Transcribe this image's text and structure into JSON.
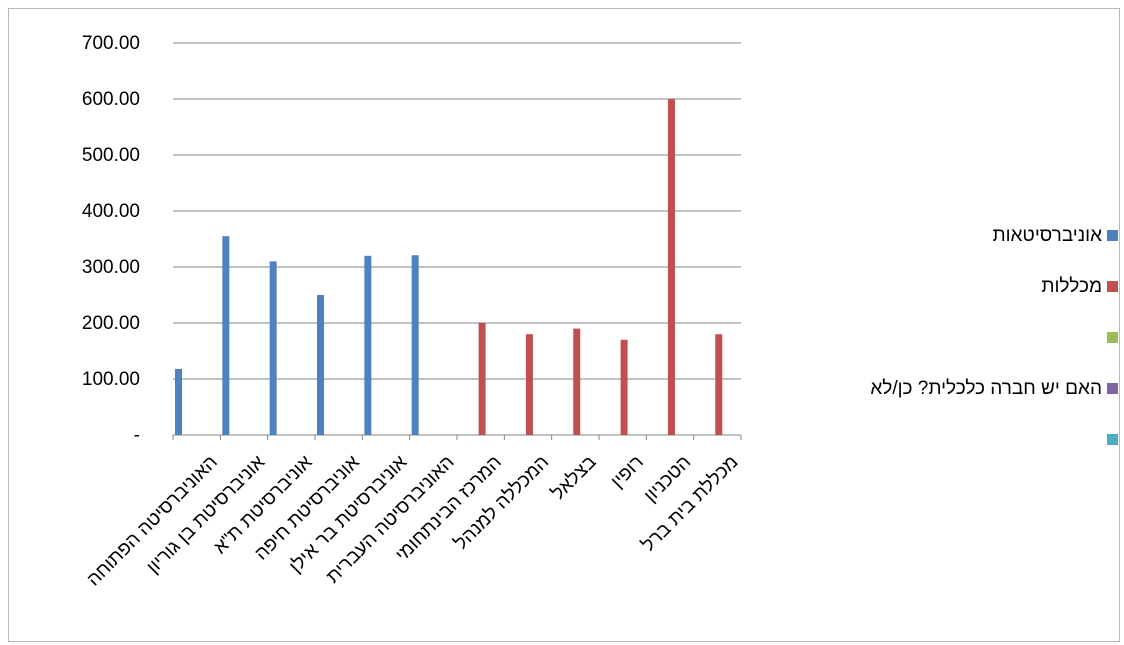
{
  "chart_data": {
    "type": "bar",
    "title": "",
    "xlabel": "",
    "ylabel": "",
    "ylim": [
      0,
      700
    ],
    "yticks": [
      "-",
      "100.00",
      "200.00",
      "300.00",
      "400.00",
      "500.00",
      "600.00",
      "700.00"
    ],
    "grid": true,
    "legend_position": "right",
    "categories": [
      "האוניברסיטה הפתוחה",
      "אוניברסיטת בן גוריון",
      "אוניברסיטת ת\"א",
      "אוניברסיטת חיפה",
      "אוניברסיטת בר אילן",
      "האוניברסיטה העברית",
      "המרכז הבינתחומי",
      "המכללה למנהל",
      "בצלאל",
      "רופין",
      "הטכניון",
      "מכללת בית ברל"
    ],
    "series": [
      {
        "name": "אוניברסיטאות",
        "color": "#4f81bd",
        "values": [
          118,
          355,
          310,
          250,
          320,
          321,
          null,
          null,
          null,
          null,
          null,
          null
        ]
      },
      {
        "name": "מכללות",
        "color": "#c0504d",
        "values": [
          null,
          null,
          null,
          null,
          null,
          null,
          200,
          180,
          190,
          170,
          600,
          180
        ]
      },
      {
        "name": "",
        "color": "#9bbb59",
        "values": [
          null,
          null,
          null,
          null,
          null,
          null,
          null,
          null,
          null,
          null,
          null,
          null
        ]
      },
      {
        "name": "האם יש חברה כלכלית? כן/לא",
        "color": "#8064a2",
        "values": [
          null,
          null,
          null,
          null,
          null,
          null,
          null,
          null,
          null,
          null,
          null,
          null
        ]
      },
      {
        "name": "",
        "color": "#4bacc6",
        "values": [
          null,
          null,
          null,
          null,
          null,
          null,
          null,
          null,
          null,
          null,
          null,
          null
        ]
      }
    ]
  }
}
